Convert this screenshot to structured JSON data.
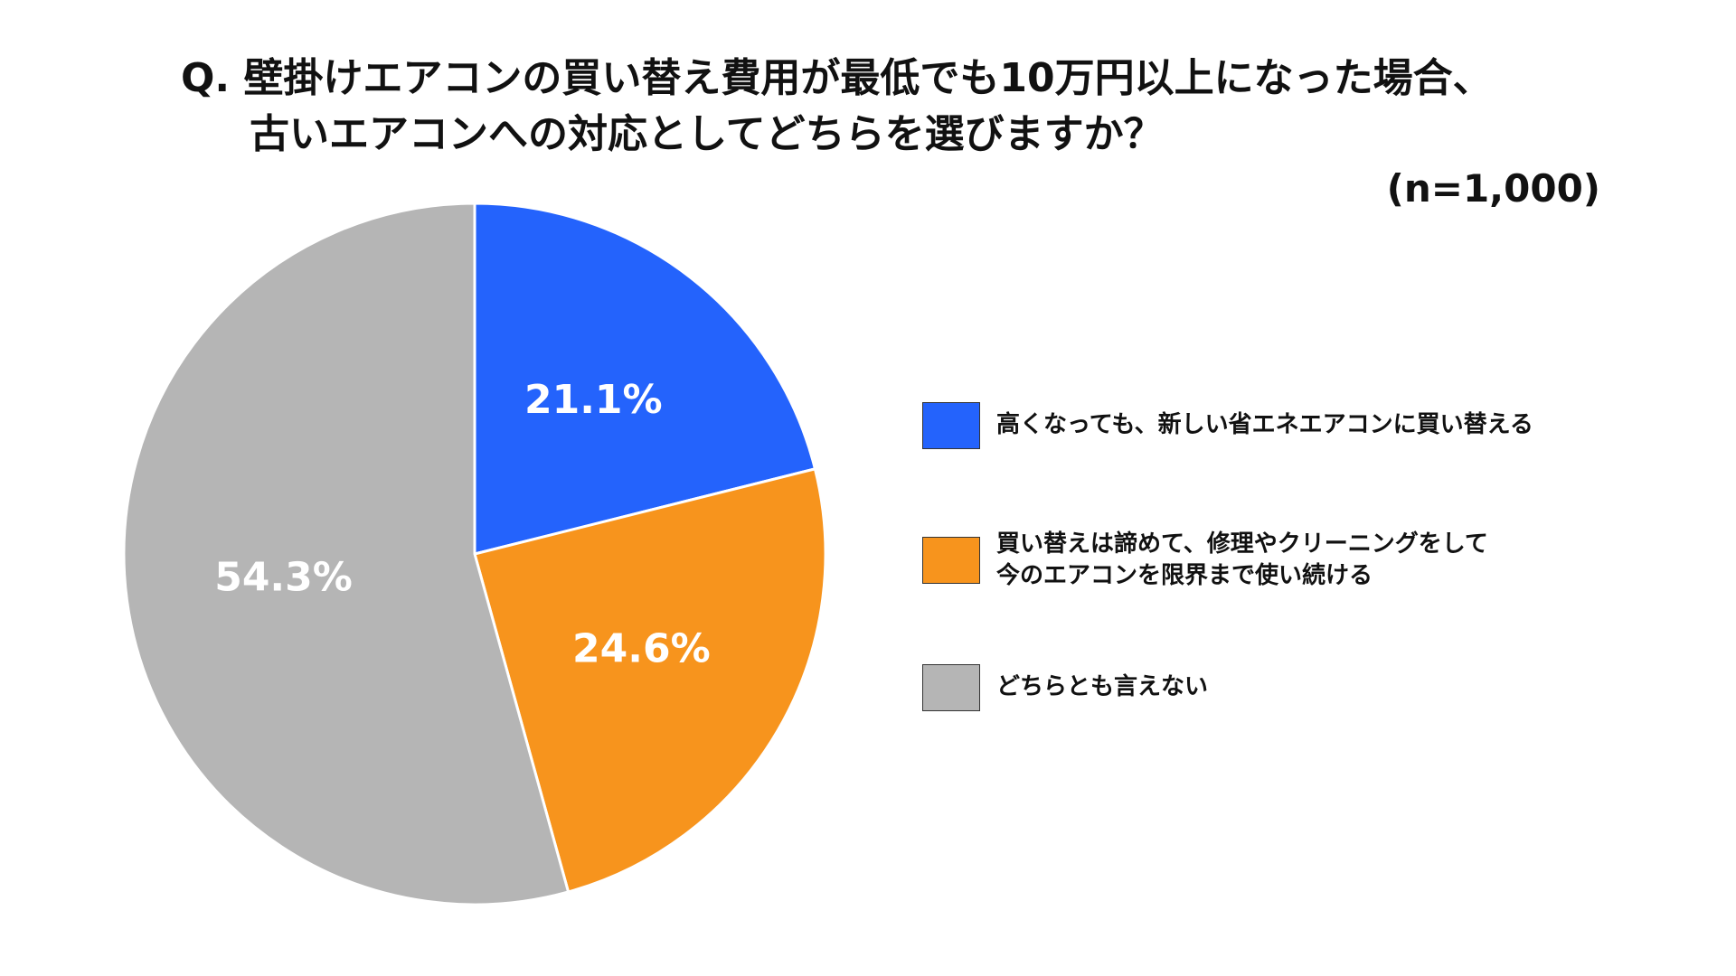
{
  "title": {
    "line1": "Q. 壁掛けエアコンの買い替え費用が最低でも10万円以上になった場合、",
    "line2": "古いエアコンへの対応としてどちらを選びますか？"
  },
  "sample_size": "(n=1,000)",
  "chart_data": {
    "type": "pie",
    "unit": "%",
    "start_angle_deg": 0,
    "direction": "clockwise",
    "slices": [
      {
        "label": "高くなっても、新しい省エネエアコンに買い替える",
        "value": 21.1,
        "display": "21.1%",
        "color": "#2463FC"
      },
      {
        "label": "買い替えは諦めて、修理やクリーニングをして\n今のエアコンを限界まで使い続ける",
        "value": 24.6,
        "display": "24.6%",
        "color": "#F7941D"
      },
      {
        "label": "どちらとも言えない",
        "value": 54.3,
        "display": "54.3%",
        "color": "#B5B5B5"
      }
    ],
    "legend_position": "right"
  }
}
